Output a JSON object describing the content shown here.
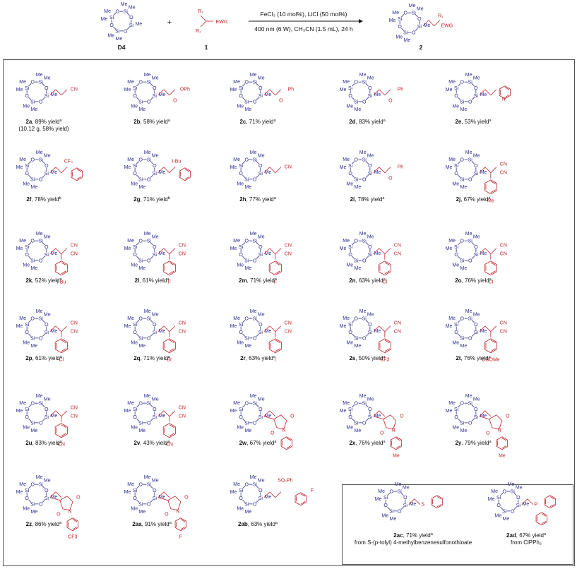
{
  "header": {
    "reagent1": "D4",
    "reagent2": "1",
    "product": "2",
    "conditions_top": "FeCl₃ (10 mol%), LiCl (50 mol%)",
    "conditions_bottom": "400 nm (6 W), CH₃CN (1.5 mL), 24 h",
    "plus": "+",
    "sub_r1": "R₁",
    "sub_r2": "R₂",
    "sub_ewg": "EWG"
  },
  "atoms": {
    "si": "Si",
    "o": "O",
    "me": "Me"
  },
  "compounds": [
    {
      "id": "2a",
      "text": ", 89% yield",
      "sup": "a",
      "extra": "(10.12 g, 58% yield)",
      "group": "CN"
    },
    {
      "id": "2b",
      "text": ", 58% yield",
      "sup": "a",
      "group": "OPh"
    },
    {
      "id": "2c",
      "text": ", 71% yield",
      "sup": "a",
      "group": "Ph"
    },
    {
      "id": "2d",
      "text": ", 83% yield",
      "sup": "a",
      "group": "Ph"
    },
    {
      "id": "2e",
      "text": ", 53% yield",
      "sup": "a",
      "group": "N"
    },
    {
      "id": "2f",
      "text": ", 78% yield",
      "sup": "b",
      "group": "CF3"
    },
    {
      "id": "2g",
      "text": ", 71% yield",
      "sup": "b",
      "group": "t-Bu"
    },
    {
      "id": "2h",
      "text": ", 77% yield",
      "sup": "a",
      "group": "CN"
    },
    {
      "id": "2i",
      "text": ", 78% yield",
      "sup": "a",
      "group": "Ph"
    },
    {
      "id": "2j",
      "text": ", 67% yield",
      "sup": "a",
      "group": "Me"
    },
    {
      "id": "2k",
      "text": ", 52% yield",
      "sup": "a",
      "group": "t-Bu"
    },
    {
      "id": "2l",
      "text": ", 61% yield",
      "sup": "a",
      "group": "F"
    },
    {
      "id": "2m",
      "text": ", 71% yield",
      "sup": "a",
      "group": "F"
    },
    {
      "id": "2n",
      "text": ", 63% yield",
      "sup": "a",
      "group": "Cl"
    },
    {
      "id": "2o",
      "text": ", 76% yield",
      "sup": "a",
      "group": "Cl"
    },
    {
      "id": "2p",
      "text": ", 61% yield",
      "sup": "a",
      "group": "Cl"
    },
    {
      "id": "2q",
      "text": ", 71% yield",
      "sup": "a",
      "group": "Br"
    },
    {
      "id": "2r",
      "text": ", 63% yield",
      "sup": "a",
      "group": "I"
    },
    {
      "id": "2s",
      "text": ", 50% yield",
      "sup": "a",
      "group": "CF3"
    },
    {
      "id": "2t",
      "text": ", 76% yield",
      "sup": "a",
      "group": "COOMe"
    },
    {
      "id": "2u",
      "text": ", 83% yield",
      "sup": "a",
      "group": "CN"
    },
    {
      "id": "2v",
      "text": ", 43% yield",
      "sup": "a",
      "group": "CN"
    },
    {
      "id": "2w",
      "text": ", 67% yield",
      "sup": "a",
      "group": "N"
    },
    {
      "id": "2x",
      "text": ", 76% yield",
      "sup": "a",
      "group": "Me"
    },
    {
      "id": "2y",
      "text": ", 79% yield",
      "sup": "a",
      "group": "Me"
    },
    {
      "id": "2z",
      "text": ", 86% yield",
      "sup": "a",
      "group": "CF3"
    },
    {
      "id": "2aa",
      "text": ", 91% yield",
      "sup": "a",
      "group": "F"
    },
    {
      "id": "2ab",
      "text": ", 63% yield",
      "sup": "a",
      "group": "SO2Ph"
    },
    {
      "id": "2ac",
      "text": ", 71% yield",
      "sup": "a",
      "extra": "from S-(p-tolyl) 4-methylbenzenesulfonothioate",
      "group": "S"
    },
    {
      "id": "2ad",
      "text": ", 67% yield",
      "sup": "a",
      "extra": "from ClPPh₂",
      "group": "P"
    }
  ]
}
